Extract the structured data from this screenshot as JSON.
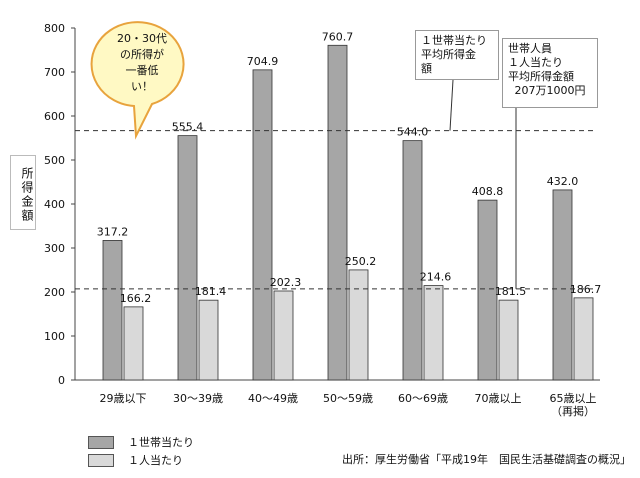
{
  "chart_data": {
    "type": "bar",
    "ylabel": "所得金額",
    "ylim": [
      0,
      800
    ],
    "yticks": [
      0,
      100,
      200,
      300,
      400,
      500,
      600,
      700,
      800
    ],
    "categories": [
      "29歳以下",
      "30～39歳",
      "40～49歳",
      "50～59歳",
      "60～69歳",
      "70歳以上",
      "65歳以上\n（再掲）"
    ],
    "series": [
      {
        "name": "１世帯当たり",
        "color": "#a6a6a6",
        "values": [
          317.2,
          555.4,
          704.9,
          760.7,
          544.0,
          408.8,
          432.0
        ],
        "labels": [
          "317.2",
          "555.4",
          "704.9",
          "760.7",
          "544.0",
          "408.8",
          "432.0"
        ]
      },
      {
        "name": "１人当たり",
        "color": "#d9d9d9",
        "values": [
          166.2,
          181.4,
          202.3,
          250.2,
          214.6,
          181.5,
          186.7
        ],
        "labels": [
          "166.2",
          "181.4",
          "202.3",
          "250.2",
          "214.6",
          "181.5",
          "186.7"
        ]
      }
    ],
    "reference_lines": [
      {
        "label": "１世帯当たり\n平均所得金\n額",
        "value": 566.8
      },
      {
        "label": "世帯人員\n１人当たり\n平均所得金額\n207万1000円",
        "value": 207.1
      }
    ],
    "grid": false,
    "legend_position": "bottom-left"
  },
  "callout": {
    "text": "20・30代\nの所得が\n一番低\nい！",
    "fill": "#fff9c4",
    "stroke": "#e8a33d"
  },
  "source": "出所：厚生労働省「平成19年　国民生活基礎調査の概況」"
}
